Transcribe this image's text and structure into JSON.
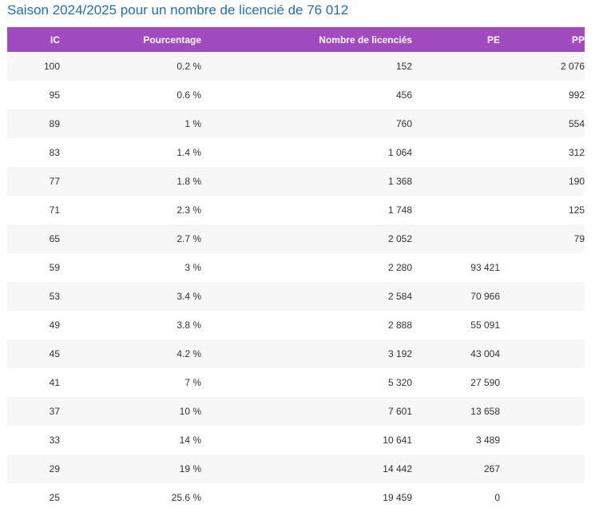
{
  "page_title": "Saison 2024/2025 pour un nombre de licencié de 76 012",
  "columns": {
    "ic": "IC",
    "pourcentage": "Pourcentage",
    "nombre": "Nombre de licenciés",
    "pe": "PE",
    "pp": "PP"
  },
  "rows": [
    {
      "ic": "100",
      "pct": "0.2 %",
      "nb": "152",
      "pe": "",
      "pp": "2 076"
    },
    {
      "ic": "95",
      "pct": "0.6 %",
      "nb": "456",
      "pe": "",
      "pp": "992"
    },
    {
      "ic": "89",
      "pct": "1 %",
      "nb": "760",
      "pe": "",
      "pp": "554"
    },
    {
      "ic": "83",
      "pct": "1.4 %",
      "nb": "1 064",
      "pe": "",
      "pp": "312"
    },
    {
      "ic": "77",
      "pct": "1.8 %",
      "nb": "1 368",
      "pe": "",
      "pp": "190"
    },
    {
      "ic": "71",
      "pct": "2.3 %",
      "nb": "1 748",
      "pe": "",
      "pp": "125"
    },
    {
      "ic": "65",
      "pct": "2.7 %",
      "nb": "2 052",
      "pe": "",
      "pp": "79"
    },
    {
      "ic": "59",
      "pct": "3 %",
      "nb": "2 280",
      "pe": "93 421",
      "pp": ""
    },
    {
      "ic": "53",
      "pct": "3.4 %",
      "nb": "2 584",
      "pe": "70 966",
      "pp": ""
    },
    {
      "ic": "49",
      "pct": "3.8 %",
      "nb": "2 888",
      "pe": "55 091",
      "pp": ""
    },
    {
      "ic": "45",
      "pct": "4.2 %",
      "nb": "3 192",
      "pe": "43 004",
      "pp": ""
    },
    {
      "ic": "41",
      "pct": "7 %",
      "nb": "5 320",
      "pe": "27 590",
      "pp": ""
    },
    {
      "ic": "37",
      "pct": "10 %",
      "nb": "7 601",
      "pe": "13 658",
      "pp": ""
    },
    {
      "ic": "33",
      "pct": "14 %",
      "nb": "10 641",
      "pe": "3 489",
      "pp": ""
    },
    {
      "ic": "29",
      "pct": "19 %",
      "nb": "14 442",
      "pe": "267",
      "pp": ""
    },
    {
      "ic": "25",
      "pct": "25.6 %",
      "nb": "19 459",
      "pe": "0",
      "pp": ""
    }
  ]
}
